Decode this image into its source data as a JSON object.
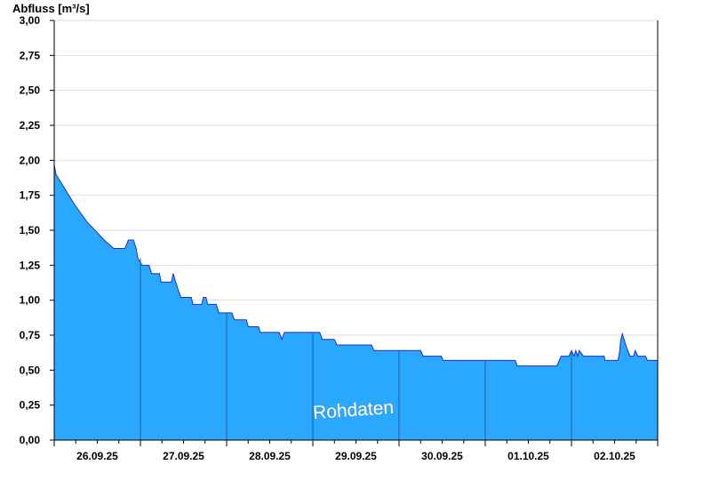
{
  "chart_data": {
    "type": "area",
    "ylabel": "Abfluss [m³/s]",
    "watermark": "Rohdaten",
    "ylim": [
      0,
      3
    ],
    "xlim": [
      0,
      7
    ],
    "yticks": [
      0,
      0.25,
      0.5,
      0.75,
      1.0,
      1.25,
      1.5,
      1.75,
      2.0,
      2.25,
      2.5,
      2.75,
      3.0
    ],
    "ytick_labels": [
      "0,00",
      "0,25",
      "0,50",
      "0,75",
      "1,00",
      "1,25",
      "1,50",
      "1,75",
      "2,00",
      "2,25",
      "2,50",
      "2,75",
      "3,00"
    ],
    "xtick_labels": [
      "26.09.25",
      "27.09.25",
      "28.09.25",
      "29.09.25",
      "30.09.25",
      "01.10.25",
      "02.10.25"
    ],
    "x_unit": "days from 26.09.25 00:00",
    "grid": true,
    "colors": {
      "fill": "#2aa8ff",
      "line": "#1a2fd0",
      "grid": "#dedede",
      "day_separator": "#1f5f9f"
    },
    "series": [
      {
        "values": [
          [
            0.0,
            1.97
          ],
          [
            0.02,
            1.9
          ],
          [
            0.09,
            1.83
          ],
          [
            0.16,
            1.76
          ],
          [
            0.23,
            1.69
          ],
          [
            0.31,
            1.62
          ],
          [
            0.38,
            1.56
          ],
          [
            0.49,
            1.49
          ],
          [
            0.58,
            1.43
          ],
          [
            0.69,
            1.37
          ],
          [
            0.82,
            1.37
          ],
          [
            0.86,
            1.43
          ],
          [
            0.92,
            1.43
          ],
          [
            0.95,
            1.37
          ],
          [
            0.97,
            1.3
          ],
          [
            1.02,
            1.25
          ],
          [
            1.1,
            1.25
          ],
          [
            1.13,
            1.19
          ],
          [
            1.22,
            1.19
          ],
          [
            1.24,
            1.13
          ],
          [
            1.36,
            1.13
          ],
          [
            1.38,
            1.19
          ],
          [
            1.41,
            1.13
          ],
          [
            1.44,
            1.07
          ],
          [
            1.47,
            1.02
          ],
          [
            1.59,
            1.02
          ],
          [
            1.61,
            0.97
          ],
          [
            1.71,
            0.97
          ],
          [
            1.73,
            1.02
          ],
          [
            1.76,
            1.02
          ],
          [
            1.78,
            0.97
          ],
          [
            1.88,
            0.97
          ],
          [
            1.91,
            0.91
          ],
          [
            2.06,
            0.91
          ],
          [
            2.09,
            0.86
          ],
          [
            2.23,
            0.86
          ],
          [
            2.25,
            0.81
          ],
          [
            2.37,
            0.81
          ],
          [
            2.39,
            0.77
          ],
          [
            2.61,
            0.77
          ],
          [
            2.64,
            0.72
          ],
          [
            2.67,
            0.77
          ],
          [
            3.08,
            0.77
          ],
          [
            3.11,
            0.72
          ],
          [
            3.25,
            0.72
          ],
          [
            3.28,
            0.68
          ],
          [
            3.68,
            0.68
          ],
          [
            3.71,
            0.64
          ],
          [
            4.25,
            0.64
          ],
          [
            4.28,
            0.6
          ],
          [
            4.49,
            0.6
          ],
          [
            4.51,
            0.57
          ],
          [
            5.35,
            0.57
          ],
          [
            5.37,
            0.53
          ],
          [
            5.83,
            0.53
          ],
          [
            5.88,
            0.6
          ],
          [
            5.97,
            0.6
          ],
          [
            6.0,
            0.64
          ],
          [
            6.03,
            0.6
          ],
          [
            6.05,
            0.64
          ],
          [
            6.07,
            0.6
          ],
          [
            6.09,
            0.64
          ],
          [
            6.14,
            0.6
          ],
          [
            6.38,
            0.6
          ],
          [
            6.39,
            0.57
          ],
          [
            6.54,
            0.57
          ],
          [
            6.56,
            0.64
          ],
          [
            6.57,
            0.71
          ],
          [
            6.59,
            0.76
          ],
          [
            6.61,
            0.72
          ],
          [
            6.64,
            0.66
          ],
          [
            6.68,
            0.6
          ],
          [
            6.72,
            0.6
          ],
          [
            6.74,
            0.64
          ],
          [
            6.77,
            0.6
          ],
          [
            6.86,
            0.6
          ],
          [
            6.88,
            0.57
          ],
          [
            7.0,
            0.57
          ]
        ]
      }
    ]
  }
}
